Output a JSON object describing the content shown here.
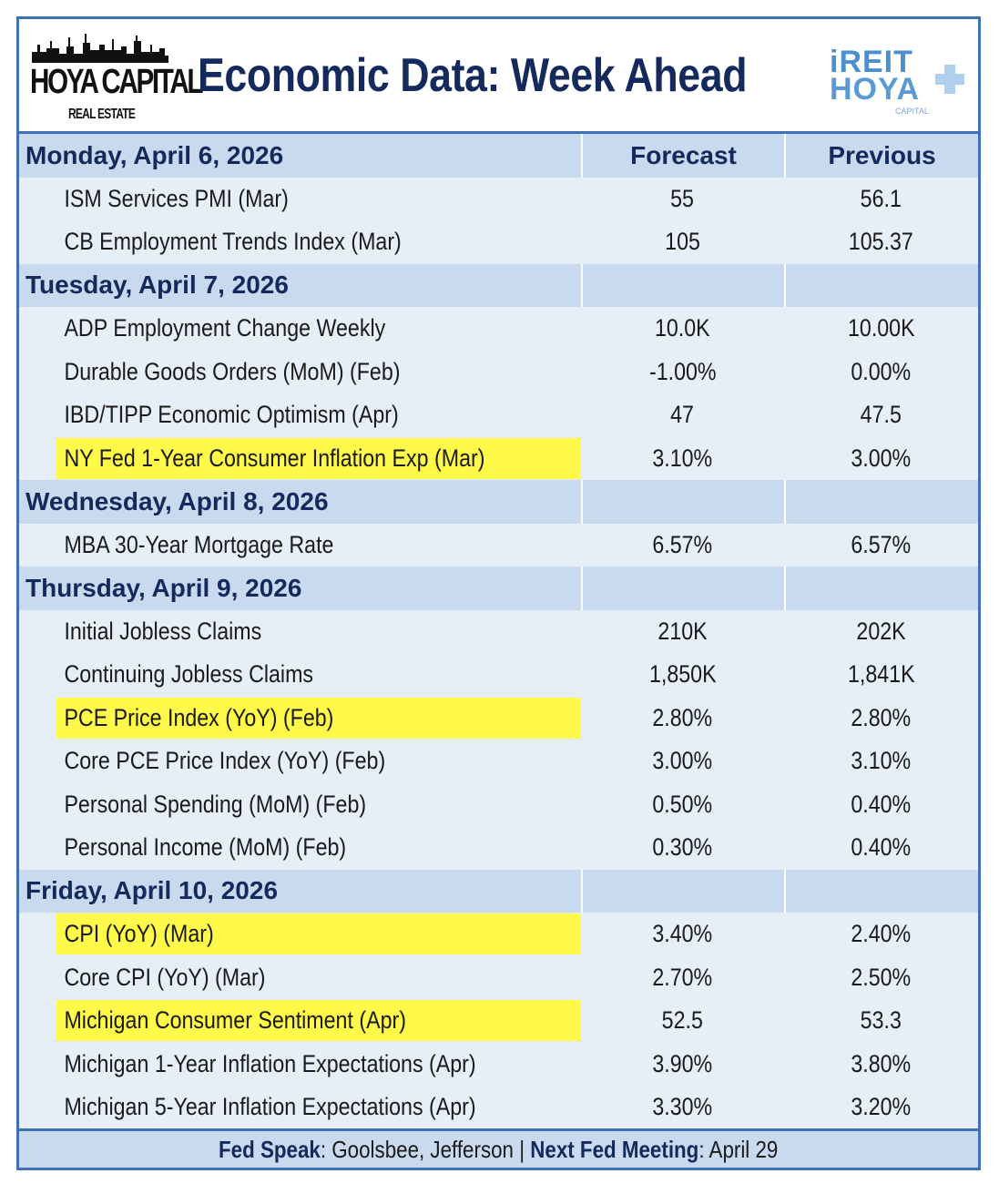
{
  "header": {
    "brand_left": "HOYA CAPITAL",
    "brand_left_sub": "REAL ESTATE",
    "title": "Economic Data: Week Ahead",
    "brand_right_line1": "iREIT",
    "brand_right_line2": "HOYA",
    "brand_right_sub": "CAPITAL"
  },
  "columns": {
    "forecast": "Forecast",
    "previous": "Previous"
  },
  "days": [
    {
      "label": "Monday, April 6, 2026",
      "show_headers": true,
      "items": [
        {
          "name": "ISM Services PMI (Mar)",
          "forecast": "55",
          "previous": "56.1",
          "highlight": false
        },
        {
          "name": "CB Employment Trends Index (Mar)",
          "forecast": "105",
          "previous": "105.37",
          "highlight": false
        }
      ]
    },
    {
      "label": "Tuesday, April 7, 2026",
      "show_headers": false,
      "items": [
        {
          "name": "ADP Employment Change Weekly",
          "forecast": "10.0K",
          "previous": "10.00K",
          "highlight": false
        },
        {
          "name": "Durable Goods Orders (MoM) (Feb)",
          "forecast": "-1.00%",
          "previous": "0.00%",
          "highlight": false
        },
        {
          "name": "IBD/TIPP Economic Optimism (Apr)",
          "forecast": "47",
          "previous": "47.5",
          "highlight": false
        },
        {
          "name": "NY Fed 1-Year Consumer Inflation Exp (Mar)",
          "forecast": "3.10%",
          "previous": "3.00%",
          "highlight": true
        }
      ]
    },
    {
      "label": "Wednesday, April 8, 2026",
      "show_headers": false,
      "items": [
        {
          "name": "MBA 30-Year Mortgage Rate",
          "forecast": "6.57%",
          "previous": "6.57%",
          "highlight": false
        }
      ]
    },
    {
      "label": "Thursday, April 9, 2026",
      "show_headers": false,
      "items": [
        {
          "name": "Initial Jobless Claims",
          "forecast": "210K",
          "previous": "202K",
          "highlight": false
        },
        {
          "name": "Continuing Jobless Claims",
          "forecast": "1,850K",
          "previous": "1,841K",
          "highlight": false
        },
        {
          "name": "PCE Price Index (YoY) (Feb)",
          "forecast": "2.80%",
          "previous": "2.80%",
          "highlight": true
        },
        {
          "name": "Core PCE Price Index (YoY) (Feb)",
          "forecast": "3.00%",
          "previous": "3.10%",
          "highlight": false
        },
        {
          "name": "Personal Spending (MoM) (Feb)",
          "forecast": "0.50%",
          "previous": "0.40%",
          "highlight": false
        },
        {
          "name": "Personal Income (MoM) (Feb)",
          "forecast": "0.30%",
          "previous": "0.40%",
          "highlight": false
        }
      ]
    },
    {
      "label": "Friday, April 10, 2026",
      "show_headers": false,
      "items": [
        {
          "name": "CPI (YoY) (Mar)",
          "forecast": "3.40%",
          "previous": "2.40%",
          "highlight": true
        },
        {
          "name": "Core CPI (YoY) (Mar)",
          "forecast": "2.70%",
          "previous": "2.50%",
          "highlight": false
        },
        {
          "name": "Michigan Consumer Sentiment (Apr)",
          "forecast": "52.5",
          "previous": "53.3",
          "highlight": true
        },
        {
          "name": "Michigan 1-Year Inflation Expectations (Apr)",
          "forecast": "3.90%",
          "previous": "3.80%",
          "highlight": false
        },
        {
          "name": "Michigan 5-Year Inflation Expectations (Apr)",
          "forecast": "3.30%",
          "previous": "3.20%",
          "highlight": false
        }
      ]
    }
  ],
  "footer": {
    "fed_speak_label": "Fed Speak",
    "fed_speak_value": ": Goolsbee, Jefferson | ",
    "next_meeting_label": "Next Fed Meeting",
    "next_meeting_value": ": April 29"
  },
  "colors": {
    "border": "#3f6fb4",
    "day_band": "#c9d9ee",
    "body": "#e6eef8",
    "highlight": "#fff94a",
    "title": "#142a5c"
  }
}
